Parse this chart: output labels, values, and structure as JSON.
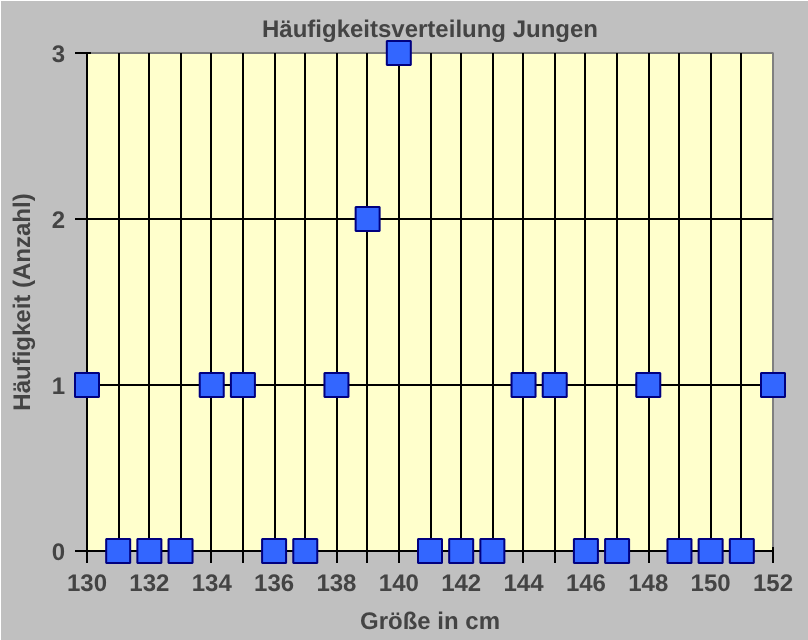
{
  "chart_data": {
    "type": "scatter",
    "title": "Häufigkeitsverteilung Jungen",
    "xlabel": "Größe in cm",
    "ylabel": "Häufigkeit (Anzahl)",
    "x": [
      130,
      131,
      132,
      133,
      134,
      135,
      136,
      137,
      138,
      139,
      140,
      141,
      142,
      143,
      144,
      145,
      146,
      147,
      148,
      149,
      150,
      151,
      152
    ],
    "series": [
      {
        "color": "#3366ff",
        "values": [
          1,
          0,
          0,
          0,
          1,
          1,
          0,
          0,
          1,
          2,
          3,
          0,
          0,
          0,
          1,
          1,
          0,
          0,
          1,
          0,
          0,
          0,
          1
        ]
      }
    ],
    "xlim": [
      130,
      152
    ],
    "ylim": [
      0,
      3
    ],
    "xticks": [
      130,
      {
        "value": 131,
        "label": null
      },
      132,
      {
        "value": 133,
        "label": null
      },
      134,
      {
        "value": 135,
        "label": null
      },
      136,
      {
        "value": 137,
        "label": null
      },
      138,
      {
        "value": 139,
        "label": null
      },
      140,
      {
        "value": 141,
        "label": null
      },
      142,
      {
        "value": 143,
        "label": null
      },
      144,
      {
        "value": 145,
        "label": null
      },
      146,
      {
        "value": 147,
        "label": null
      },
      148,
      {
        "value": 149,
        "label": null
      },
      150,
      {
        "value": 151,
        "label": null
      },
      152
    ],
    "yticks": [
      0,
      1,
      2,
      3
    ],
    "grid": true,
    "marker": "square"
  }
}
